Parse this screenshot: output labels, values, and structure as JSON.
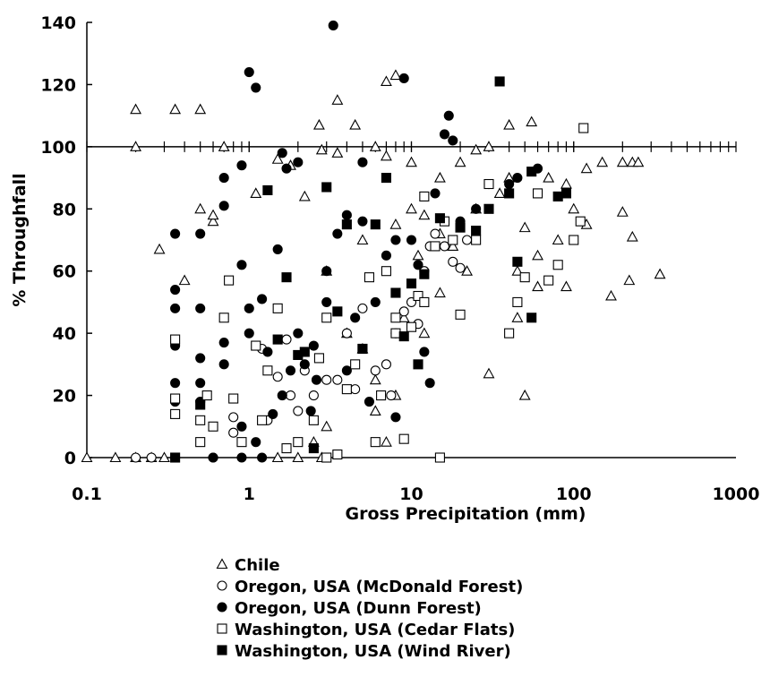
{
  "chart_data": {
    "type": "scatter",
    "x_label": "Gross Precipitation (mm)",
    "y_label": "% Throughfall",
    "xscale": "log",
    "xlim": [
      0.1,
      1000
    ],
    "xticks": [
      0.1,
      1,
      10,
      100,
      1000
    ],
    "ylim": [
      0,
      140
    ],
    "yticks": [
      0,
      20,
      40,
      60,
      80,
      100,
      120,
      140
    ],
    "reference_line": 100,
    "minor_ticks_on_reference": true,
    "series": [
      {
        "name": "Chile",
        "marker": "triangle",
        "filled": false,
        "color": "#000000",
        "x": [
          0.1,
          0.15,
          0.2,
          0.25,
          0.3,
          0.2,
          0.35,
          0.5,
          0.2,
          0.7,
          0.28,
          0.4,
          0.5,
          0.6,
          0.6,
          1.1,
          1.5,
          1.8,
          2.2,
          2.7,
          3.5,
          2.8,
          3.5,
          4.5,
          7,
          8,
          6,
          7,
          10,
          12,
          15,
          20,
          25,
          30,
          40,
          55,
          40,
          50,
          60,
          70,
          90,
          120,
          150,
          200,
          230,
          250,
          340,
          220,
          200,
          230,
          170,
          90,
          30,
          50,
          45,
          22,
          15,
          12,
          8,
          7,
          6,
          5,
          4,
          3,
          2.5,
          2,
          1.5,
          2.8,
          3,
          5,
          8,
          10,
          15,
          18,
          25,
          35,
          45,
          60,
          80,
          100,
          120,
          6,
          9,
          11
        ],
        "values": [
          0,
          0,
          0,
          0,
          0,
          112,
          112,
          112,
          100,
          100,
          67,
          57,
          80,
          76,
          78,
          85,
          96,
          94,
          84,
          107,
          115,
          99,
          98,
          107,
          121,
          123,
          100,
          97,
          95,
          78,
          90,
          95,
          99,
          100,
          107,
          108,
          90,
          74,
          65,
          90,
          88,
          93,
          95,
          95,
          95,
          95,
          59,
          57,
          79,
          71,
          52,
          55,
          27,
          20,
          45,
          60,
          53,
          40,
          20,
          5,
          25,
          35,
          40,
          10,
          5,
          0,
          0,
          0,
          60,
          70,
          75,
          80,
          72,
          68,
          80,
          85,
          60,
          55,
          70,
          80,
          75,
          15,
          45,
          65
        ]
      },
      {
        "name": "Oregon, USA (McDonald Forest)",
        "marker": "circle",
        "filled": false,
        "color": "#000000",
        "x": [
          0.2,
          0.25,
          0.6,
          0.8,
          0.8,
          1.3,
          1.5,
          1.7,
          2,
          2.5,
          3,
          3.5,
          4,
          5,
          7,
          7.5,
          9,
          10,
          12,
          14,
          16,
          18,
          20,
          22,
          6,
          8,
          11,
          1.2,
          1.8,
          2.2,
          13,
          4.5
        ],
        "values": [
          0,
          0,
          0,
          13,
          8,
          12,
          26,
          38,
          15,
          20,
          25,
          25,
          40,
          48,
          30,
          20,
          47,
          50,
          60,
          72,
          68,
          63,
          61,
          70,
          28,
          40,
          43,
          35,
          20,
          28,
          68,
          22
        ]
      },
      {
        "name": "Oregon, USA (Dunn Forest)",
        "marker": "circle",
        "filled": true,
        "color": "#000000",
        "x": [
          0.35,
          0.35,
          0.35,
          0.35,
          0.35,
          0.35,
          0.35,
          0.5,
          0.5,
          0.5,
          0.5,
          0.5,
          0.7,
          0.7,
          0.7,
          0.7,
          0.9,
          0.9,
          1.0,
          1.1,
          1,
          1,
          1.2,
          1.3,
          1.5,
          1.6,
          1.7,
          2,
          1.8,
          2,
          2.2,
          2.5,
          2.6,
          3,
          3,
          3.3,
          3.5,
          4,
          4,
          4.5,
          5,
          5,
          5.5,
          6,
          7,
          8,
          8,
          9,
          10,
          11,
          12,
          13,
          14,
          16,
          17,
          18,
          20,
          25,
          30,
          40,
          45,
          60,
          1.4,
          1.6,
          2.4,
          0.9,
          1.1,
          0.6,
          0.9,
          1.2
        ],
        "values": [
          0,
          18,
          24,
          36,
          48,
          54,
          72,
          72,
          48,
          32,
          24,
          18,
          30,
          37,
          81,
          90,
          94,
          62,
          124,
          119,
          48,
          40,
          51,
          34,
          67,
          98,
          93,
          95,
          28,
          40,
          30,
          36,
          25,
          50,
          60,
          139,
          72,
          78,
          28,
          45,
          76,
          95,
          18,
          50,
          65,
          70,
          13,
          122,
          70,
          62,
          34,
          24,
          85,
          104,
          110,
          102,
          76,
          80,
          88,
          88,
          90,
          93,
          14,
          20,
          15,
          10,
          5,
          0,
          0,
          0
        ]
      },
      {
        "name": "Washington, USA (Cedar Flats)",
        "marker": "square",
        "filled": false,
        "color": "#000000",
        "x": [
          0.35,
          0.35,
          0.35,
          0.5,
          0.5,
          0.6,
          0.7,
          0.75,
          0.8,
          0.9,
          1.1,
          1.2,
          1.3,
          1.5,
          1.7,
          2,
          2.5,
          3,
          3.5,
          4,
          4.5,
          5,
          6,
          6.5,
          7,
          8,
          9,
          10,
          11,
          12,
          14,
          15,
          16,
          18,
          20,
          25,
          30,
          40,
          45,
          60,
          80,
          100,
          110,
          115,
          70,
          50,
          12,
          8,
          3,
          2.7,
          5.5,
          0.55
        ],
        "values": [
          14,
          19,
          38,
          5,
          12,
          10,
          45,
          57,
          19,
          5,
          36,
          12,
          28,
          48,
          3,
          5,
          12,
          0,
          1,
          22,
          30,
          35,
          5,
          20,
          60,
          40,
          6,
          42,
          52,
          84,
          68,
          0,
          76,
          70,
          46,
          70,
          88,
          40,
          50,
          85,
          62,
          70,
          76,
          106,
          57,
          58,
          50,
          45,
          45,
          32,
          58,
          20
        ]
      },
      {
        "name": "Washington, USA (Wind River)",
        "marker": "square",
        "filled": true,
        "color": "#000000",
        "x": [
          0.35,
          0.5,
          1.3,
          1.7,
          2.2,
          2.5,
          3,
          3.5,
          4,
          5,
          6,
          7,
          8,
          9,
          10,
          12,
          15,
          20,
          25,
          30,
          35,
          40,
          45,
          55,
          55,
          80,
          90,
          2,
          1.5,
          11
        ],
        "values": [
          0,
          17,
          86,
          58,
          34,
          3,
          87,
          47,
          75,
          35,
          75,
          90,
          53,
          39,
          56,
          59,
          77,
          74,
          73,
          80,
          121,
          85,
          63,
          92,
          45,
          84,
          85,
          33,
          38,
          30
        ]
      }
    ]
  }
}
